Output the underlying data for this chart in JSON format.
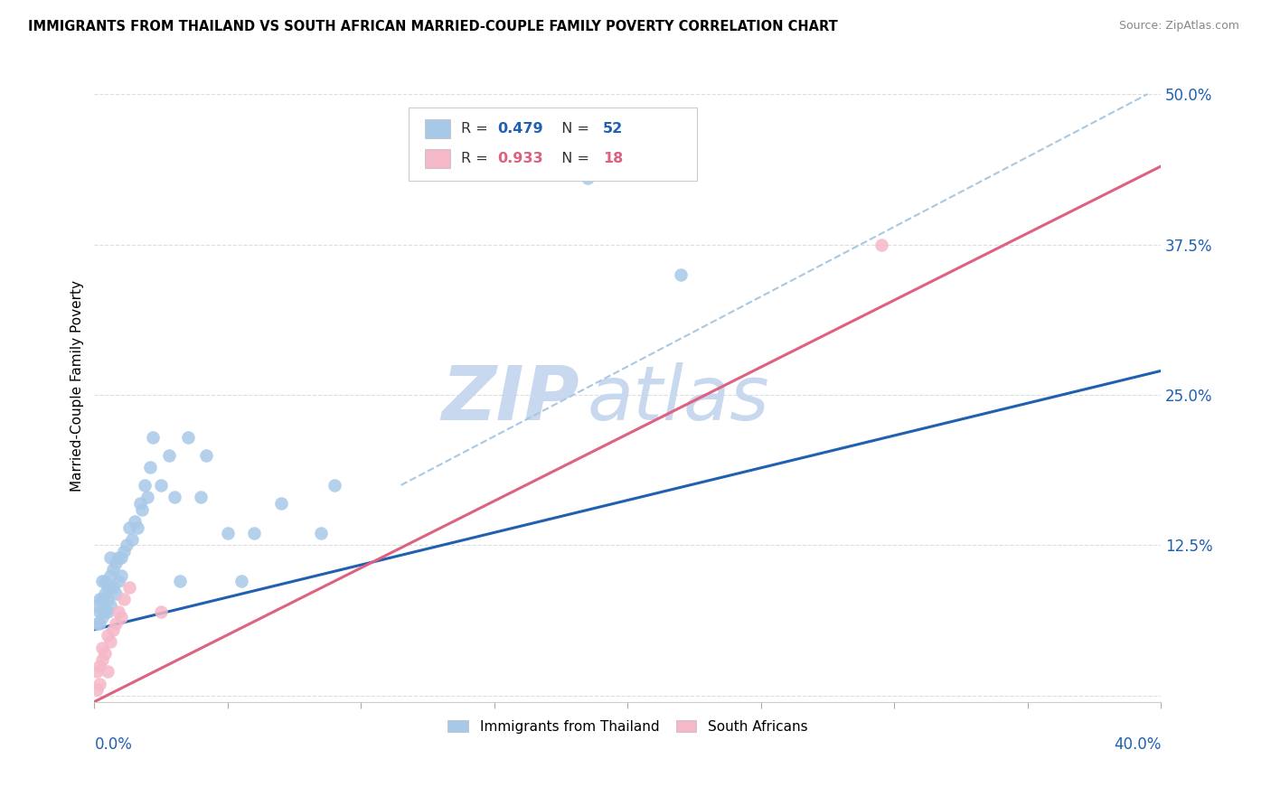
{
  "title": "IMMIGRANTS FROM THAILAND VS SOUTH AFRICAN MARRIED-COUPLE FAMILY POVERTY CORRELATION CHART",
  "source": "Source: ZipAtlas.com",
  "ylabel": "Married-Couple Family Poverty",
  "ytick_vals": [
    0.0,
    0.125,
    0.25,
    0.375,
    0.5
  ],
  "ytick_labels": [
    "",
    "12.5%",
    "25.0%",
    "37.5%",
    "50.0%"
  ],
  "legend_label1": "Immigrants from Thailand",
  "legend_label2": "South Africans",
  "R1": 0.479,
  "N1": 52,
  "R2": 0.933,
  "N2": 18,
  "blue_scatter_color": "#a8c8e8",
  "pink_scatter_color": "#f5b8c8",
  "blue_line_color": "#2060b0",
  "pink_line_color": "#e06080",
  "dashed_line_color": "#aac8e0",
  "watermark_zip_color": "#c8d8ee",
  "watermark_atlas_color": "#c8d8ee",
  "xlim": [
    0.0,
    0.4
  ],
  "ylim": [
    -0.005,
    0.52
  ],
  "blue_line_x0": 0.0,
  "blue_line_y0": 0.055,
  "blue_line_x1": 0.4,
  "blue_line_y1": 0.27,
  "pink_line_x0": 0.0,
  "pink_line_y0": -0.005,
  "pink_line_x1": 0.4,
  "pink_line_y1": 0.44,
  "dash_line_x0": 0.115,
  "dash_line_y0": 0.175,
  "dash_line_x1": 0.395,
  "dash_line_y1": 0.5,
  "thailand_x": [
    0.001,
    0.001,
    0.002,
    0.002,
    0.002,
    0.003,
    0.003,
    0.003,
    0.004,
    0.004,
    0.004,
    0.005,
    0.005,
    0.005,
    0.006,
    0.006,
    0.006,
    0.007,
    0.007,
    0.008,
    0.008,
    0.009,
    0.009,
    0.01,
    0.01,
    0.011,
    0.012,
    0.013,
    0.014,
    0.015,
    0.016,
    0.017,
    0.018,
    0.019,
    0.02,
    0.021,
    0.022,
    0.025,
    0.028,
    0.03,
    0.032,
    0.035,
    0.04,
    0.042,
    0.05,
    0.055,
    0.06,
    0.07,
    0.085,
    0.09,
    0.185,
    0.22
  ],
  "thailand_y": [
    0.06,
    0.075,
    0.06,
    0.08,
    0.07,
    0.065,
    0.08,
    0.095,
    0.07,
    0.095,
    0.085,
    0.07,
    0.09,
    0.08,
    0.075,
    0.1,
    0.115,
    0.09,
    0.105,
    0.085,
    0.11,
    0.095,
    0.115,
    0.1,
    0.115,
    0.12,
    0.125,
    0.14,
    0.13,
    0.145,
    0.14,
    0.16,
    0.155,
    0.175,
    0.165,
    0.19,
    0.215,
    0.175,
    0.2,
    0.165,
    0.095,
    0.215,
    0.165,
    0.2,
    0.135,
    0.095,
    0.135,
    0.16,
    0.135,
    0.175,
    0.43,
    0.35
  ],
  "sa_x": [
    0.001,
    0.001,
    0.002,
    0.002,
    0.003,
    0.003,
    0.004,
    0.005,
    0.005,
    0.006,
    0.007,
    0.008,
    0.009,
    0.01,
    0.011,
    0.013,
    0.025,
    0.295
  ],
  "sa_y": [
    0.005,
    0.02,
    0.01,
    0.025,
    0.03,
    0.04,
    0.035,
    0.02,
    0.05,
    0.045,
    0.055,
    0.06,
    0.07,
    0.065,
    0.08,
    0.09,
    0.07,
    0.375
  ]
}
